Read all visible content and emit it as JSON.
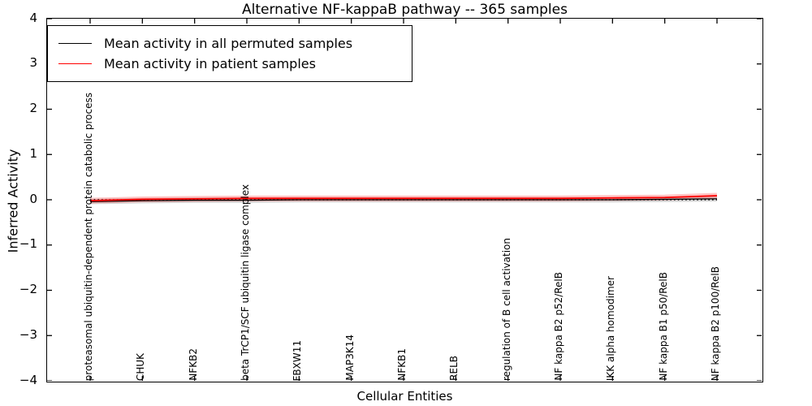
{
  "title": "Alternative NF-kappaB pathway -- 365 samples",
  "legend": {
    "items": [
      {
        "label": "Mean activity in all permuted samples",
        "color": "#000000"
      },
      {
        "label": "Mean activity in patient samples",
        "color": "#ff0000"
      }
    ]
  },
  "chart_data": {
    "type": "line",
    "title": "Alternative NF-kappaB pathway -- 365 samples",
    "xlabel": "Cellular Entities",
    "ylabel": "Inferred Activity",
    "ylim": [
      -4,
      4
    ],
    "yticks": [
      -4,
      -3,
      -2,
      -1,
      0,
      1,
      2,
      3,
      4
    ],
    "grid": false,
    "legend_position": "upper left",
    "zero_line": {
      "style": "dotted",
      "color": "#000000",
      "value": 0
    },
    "categories": [
      "proteasomal ubiquitin-dependent protein catabolic process",
      "CHUK",
      "NFKB2",
      "beta TrCP1/SCF ubiquitin ligase complex",
      "FBXW11",
      "MAP3K14",
      "NFKB1",
      "RELB",
      "regulation of B cell activation",
      "NF kappa B2 p52/RelB",
      "IKK alpha homodimer",
      "NF kappa B1 p50/RelB",
      "NF kappa B2 p100/RelB"
    ],
    "series": [
      {
        "name": "Mean activity in all permuted samples",
        "color": "#000000",
        "band_color": "rgba(120,120,120,0.30)",
        "values": [
          -0.04,
          -0.02,
          -0.01,
          -0.01,
          0.0,
          0.0,
          0.0,
          0.0,
          0.0,
          0.0,
          0.0,
          0.01,
          0.02
        ]
      },
      {
        "name": "Mean activity in patient samples",
        "color": "#ff0000",
        "band_color": "rgba(255,60,60,0.30)",
        "values": [
          -0.02,
          0.01,
          0.02,
          0.03,
          0.03,
          0.03,
          0.03,
          0.03,
          0.03,
          0.03,
          0.04,
          0.05,
          0.09
        ]
      }
    ]
  }
}
